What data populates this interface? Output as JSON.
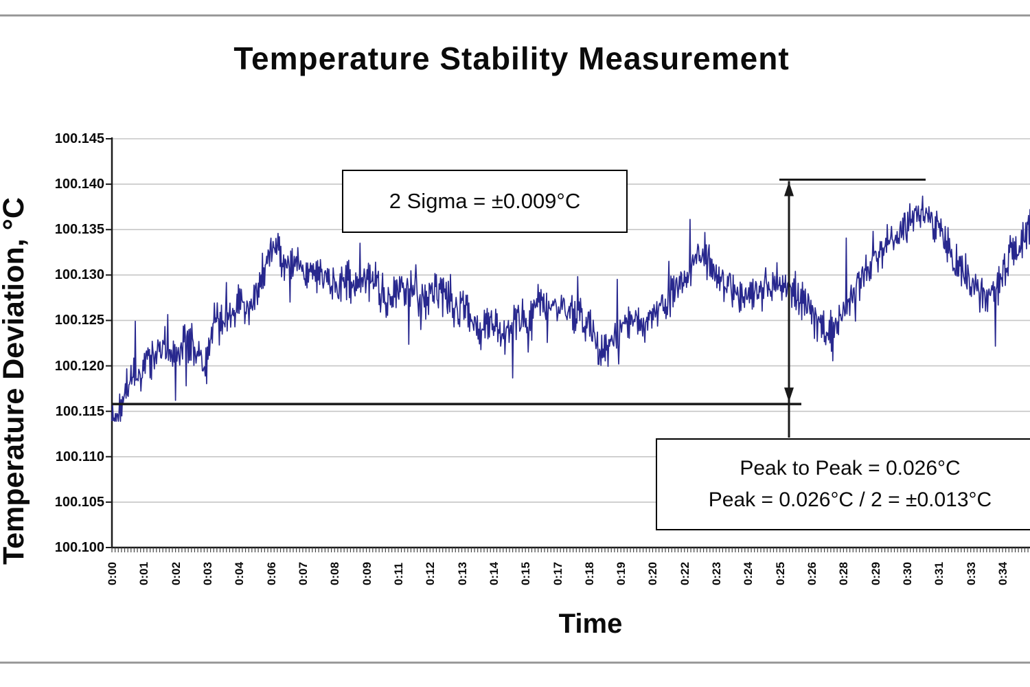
{
  "page": {
    "top_rule": true,
    "bottom_rule": true
  },
  "chart_data": {
    "type": "line",
    "title": "Temperature Stability Measurement",
    "xlabel": "Time",
    "ylabel": "Temperature Deviation, °C",
    "ylim": [
      100.1,
      100.145
    ],
    "y_tick_step": 0.005,
    "grid": true,
    "legend": "none",
    "y_ticks": [
      "100.145",
      "100.140",
      "100.135",
      "100.130",
      "100.125",
      "100.120",
      "100.115",
      "100.110",
      "100.105",
      "100.100"
    ],
    "x_ticks": [
      "0:00",
      "0:01",
      "0:02",
      "0:03",
      "0:04",
      "0:06",
      "0:07",
      "0:08",
      "0:09",
      "0:11",
      "0:12",
      "0:13",
      "0:14",
      "0:15",
      "0:17",
      "0:18",
      "0:19",
      "0:20",
      "0:22",
      "0:23",
      "0:24",
      "0:25",
      "0:26",
      "0:28",
      "0:29",
      "0:30",
      "0:31",
      "0:33",
      "0:34"
    ],
    "x_minor_ticks_per_label": 10,
    "series": [
      {
        "name": "temperature-deviation",
        "color": "#28288E",
        "points": 1300,
        "noise_amp": 0.0016,
        "zigzag_amp": 0.0011,
        "spike_prob": 0.035,
        "anchors": [
          [
            0.0,
            100.1158
          ],
          [
            0.005,
            100.114
          ],
          [
            0.013,
            100.1172
          ],
          [
            0.022,
            100.119
          ],
          [
            0.032,
            100.12
          ],
          [
            0.045,
            100.1212
          ],
          [
            0.058,
            100.1222
          ],
          [
            0.07,
            100.1212
          ],
          [
            0.082,
            100.1228
          ],
          [
            0.095,
            100.1215
          ],
          [
            0.104,
            100.12
          ],
          [
            0.112,
            100.1258
          ],
          [
            0.121,
            100.124
          ],
          [
            0.131,
            100.1262
          ],
          [
            0.141,
            100.1272
          ],
          [
            0.151,
            100.1268
          ],
          [
            0.161,
            100.1295
          ],
          [
            0.171,
            100.1322
          ],
          [
            0.181,
            100.1332
          ],
          [
            0.191,
            100.1308
          ],
          [
            0.201,
            100.1318
          ],
          [
            0.213,
            100.1295
          ],
          [
            0.226,
            100.1302
          ],
          [
            0.241,
            100.1288
          ],
          [
            0.256,
            100.1292
          ],
          [
            0.271,
            100.1288
          ],
          [
            0.285,
            100.1298
          ],
          [
            0.299,
            100.1272
          ],
          [
            0.313,
            100.129
          ],
          [
            0.327,
            100.128
          ],
          [
            0.341,
            100.1272
          ],
          [
            0.358,
            100.1282
          ],
          [
            0.372,
            100.1262
          ],
          [
            0.386,
            100.1266
          ],
          [
            0.4,
            100.1232
          ],
          [
            0.413,
            100.1255
          ],
          [
            0.426,
            100.1235
          ],
          [
            0.441,
            100.1252
          ],
          [
            0.456,
            100.125
          ],
          [
            0.464,
            100.1278
          ],
          [
            0.476,
            100.1262
          ],
          [
            0.491,
            100.1268
          ],
          [
            0.506,
            100.1258
          ],
          [
            0.519,
            100.1248
          ],
          [
            0.531,
            100.121
          ],
          [
            0.543,
            100.1228
          ],
          [
            0.555,
            100.1242
          ],
          [
            0.566,
            100.1254
          ],
          [
            0.579,
            100.1246
          ],
          [
            0.593,
            100.126
          ],
          [
            0.607,
            100.1272
          ],
          [
            0.623,
            100.1292
          ],
          [
            0.643,
            100.1328
          ],
          [
            0.657,
            100.1302
          ],
          [
            0.671,
            100.1282
          ],
          [
            0.681,
            100.1272
          ],
          [
            0.695,
            100.128
          ],
          [
            0.709,
            100.1286
          ],
          [
            0.723,
            100.1292
          ],
          [
            0.74,
            100.1282
          ],
          [
            0.756,
            100.1272
          ],
          [
            0.77,
            100.1245
          ],
          [
            0.783,
            100.124
          ],
          [
            0.797,
            100.1262
          ],
          [
            0.813,
            100.1292
          ],
          [
            0.829,
            100.1312
          ],
          [
            0.843,
            100.1332
          ],
          [
            0.857,
            100.135
          ],
          [
            0.871,
            100.1362
          ],
          [
            0.885,
            100.1372
          ],
          [
            0.899,
            100.1352
          ],
          [
            0.913,
            100.1325
          ],
          [
            0.927,
            100.13
          ],
          [
            0.941,
            100.1288
          ],
          [
            0.957,
            100.1272
          ],
          [
            0.973,
            100.1308
          ],
          [
            0.987,
            100.1336
          ],
          [
            1.0,
            100.1348
          ]
        ]
      }
    ],
    "stats": {
      "two_sigma_c": 0.009,
      "peak_to_peak_c": 0.026,
      "peak_c": 0.013,
      "min_level": 100.1158,
      "max_level": 100.1405
    },
    "annotations": {
      "sigma_label": "2 Sigma = ±0.009°C",
      "p2p_line1": "Peak to Peak = 0.026°C",
      "p2p_line2": "Peak = 0.026°C / 2 = ±0.013°C"
    }
  },
  "colors": {
    "trace": "#28288E",
    "grid": "#c6c6c6",
    "axis": "#1a1a1a",
    "marker_lines": "#1a1a1a",
    "rule": "#9a9a9a",
    "background": "#ffffff"
  }
}
